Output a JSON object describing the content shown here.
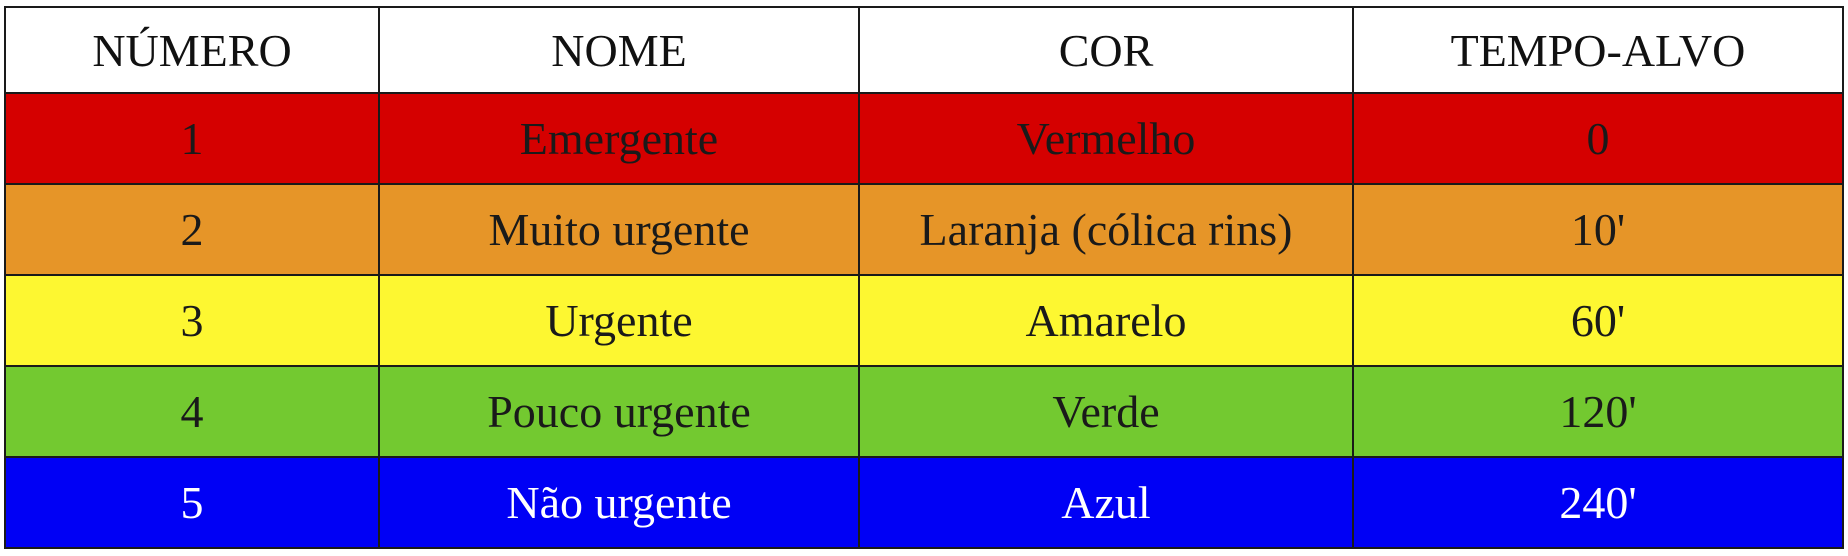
{
  "table": {
    "headers": [
      "NÚMERO",
      "NOME",
      "COR",
      "TEMPO-ALVO"
    ],
    "rows": [
      {
        "numero": "1",
        "nome": "Emergente",
        "cor": "Vermelho",
        "tempo": "0",
        "bg": "#d50000",
        "text_color": "#1a1a1a"
      },
      {
        "numero": "2",
        "nome": "Muito urgente",
        "cor": "Laranja (cólica rins)",
        "tempo": "10'",
        "bg": "#e69528",
        "text_color": "#1a1a1a"
      },
      {
        "numero": "3",
        "nome": "Urgente",
        "cor": "Amarelo",
        "tempo": "60'",
        "bg": "#fdf731",
        "text_color": "#1a1a1a"
      },
      {
        "numero": "4",
        "nome": "Pouco urgente",
        "cor": "Verde",
        "tempo": "120'",
        "bg": "#73c930",
        "text_color": "#1a1a1a"
      },
      {
        "numero": "5",
        "nome": "Não urgente",
        "cor": "Azul",
        "tempo": "240'",
        "bg": "#0000f5",
        "text_color": "#ffffff"
      }
    ]
  }
}
